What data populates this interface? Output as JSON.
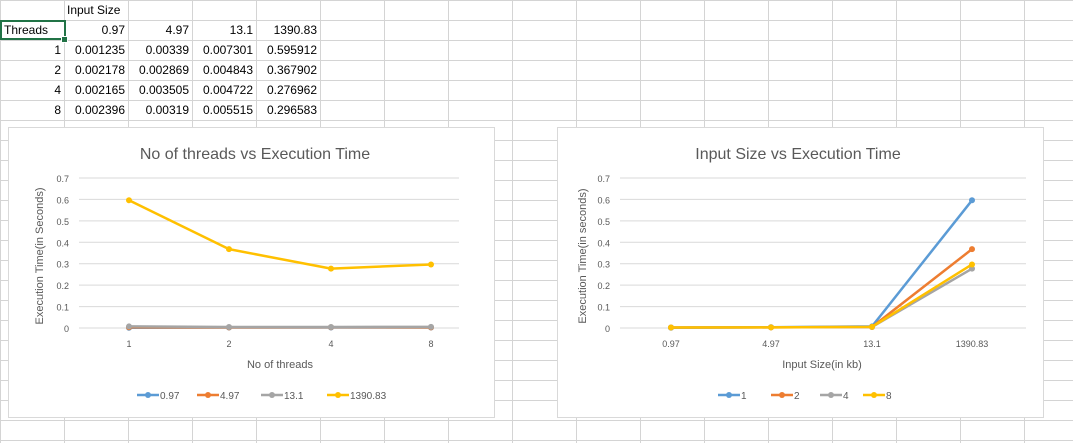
{
  "sheet": {
    "header_label": "Input Size",
    "row_label": "Threads",
    "columns": [
      "0.97",
      "4.97",
      "13.1",
      "1390.83"
    ],
    "rows": [
      {
        "thread": "1",
        "values": [
          "0.001235",
          "0.00339",
          "0.007301",
          "0.595912"
        ]
      },
      {
        "thread": "2",
        "values": [
          "0.002178",
          "0.002869",
          "0.004843",
          "0.367902"
        ]
      },
      {
        "thread": "4",
        "values": [
          "0.002165",
          "0.003505",
          "0.004722",
          "0.276962"
        ]
      },
      {
        "thread": "8",
        "values": [
          "0.002396",
          "0.00319",
          "0.005515",
          "0.296583"
        ]
      }
    ]
  },
  "chart_data": [
    {
      "type": "line",
      "title": "No of threads vs Execution Time",
      "xlabel": "No of threads",
      "ylabel": "Execution Time(in Seconds)",
      "categories": [
        "1",
        "2",
        "4",
        "8"
      ],
      "ylim": [
        0,
        0.7
      ],
      "yticks": [
        "0",
        "0.1",
        "0.2",
        "0.3",
        "0.4",
        "0.5",
        "0.6",
        "0.7"
      ],
      "grid": true,
      "legend": "bottom",
      "series": [
        {
          "name": "0.97",
          "color": "#5b9bd5",
          "values": [
            0.001235,
            0.002178,
            0.002165,
            0.002396
          ]
        },
        {
          "name": "4.97",
          "color": "#ed7d31",
          "values": [
            0.00339,
            0.002869,
            0.003505,
            0.00319
          ]
        },
        {
          "name": "13.1",
          "color": "#a5a5a5",
          "values": [
            0.007301,
            0.004843,
            0.004722,
            0.005515
          ]
        },
        {
          "name": "1390.83",
          "color": "#ffc000",
          "values": [
            0.595912,
            0.367902,
            0.276962,
            0.296583
          ]
        }
      ]
    },
    {
      "type": "line",
      "title": "Input Size vs Execution Time",
      "xlabel": "Input Size(in kb)",
      "ylabel": "Execution Time(in seconds)",
      "categories": [
        "0.97",
        "4.97",
        "13.1",
        "1390.83"
      ],
      "ylim": [
        0,
        0.7
      ],
      "yticks": [
        "0",
        "0.1",
        "0.2",
        "0.3",
        "0.4",
        "0.5",
        "0.6",
        "0.7"
      ],
      "grid": true,
      "legend": "bottom",
      "series": [
        {
          "name": "1",
          "color": "#5b9bd5",
          "values": [
            0.001235,
            0.00339,
            0.007301,
            0.595912
          ]
        },
        {
          "name": "2",
          "color": "#ed7d31",
          "values": [
            0.002178,
            0.002869,
            0.004843,
            0.367902
          ]
        },
        {
          "name": "4",
          "color": "#a5a5a5",
          "values": [
            0.002165,
            0.003505,
            0.004722,
            0.276962
          ]
        },
        {
          "name": "8",
          "color": "#ffc000",
          "values": [
            0.002396,
            0.00319,
            0.005515,
            0.296583
          ]
        }
      ]
    }
  ]
}
